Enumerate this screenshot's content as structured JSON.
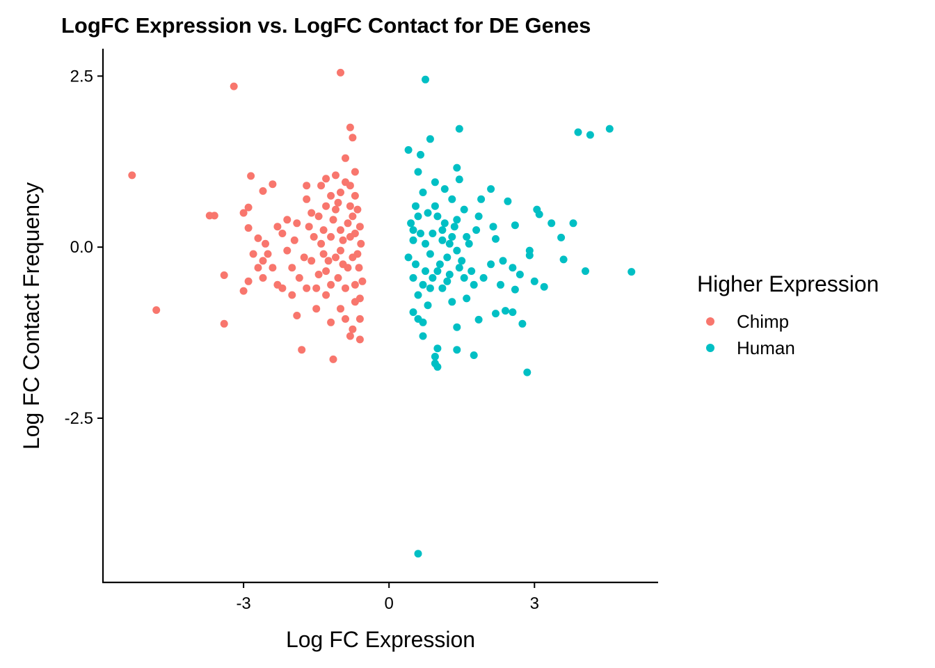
{
  "chart_data": {
    "type": "scatter",
    "title": "LogFC Expression vs. LogFC Contact for DE Genes",
    "xlabel": "Log FC Expression",
    "ylabel": "Log FC Contact Frequency",
    "xlim": [
      -5.9,
      5.55
    ],
    "ylim": [
      -4.9,
      2.9
    ],
    "x_ticks": [
      -3,
      0,
      3
    ],
    "x_tick_labels": [
      "-3",
      "0",
      "3"
    ],
    "y_ticks": [
      -2.5,
      0,
      2.5
    ],
    "y_tick_labels": [
      "-2.5",
      "0.0",
      "2.5"
    ],
    "grid": false,
    "legend": {
      "title": "Higher Expression",
      "position": "right"
    },
    "series": [
      {
        "name": "Chimp",
        "color": "#F8766D",
        "points": [
          [
            -1.0,
            2.55
          ],
          [
            -3.2,
            2.35
          ],
          [
            -5.3,
            1.05
          ],
          [
            -4.8,
            -0.92
          ],
          [
            -3.4,
            -1.12
          ],
          [
            -3.7,
            0.46
          ],
          [
            -3.6,
            0.46
          ],
          [
            -3.4,
            -0.41
          ],
          [
            -3.0,
            0.5
          ],
          [
            -2.9,
            0.58
          ],
          [
            -2.85,
            1.04
          ],
          [
            -2.6,
            0.82
          ],
          [
            -2.4,
            0.92
          ],
          [
            -2.7,
            0.13
          ],
          [
            -2.9,
            0.28
          ],
          [
            -3.0,
            -0.64
          ],
          [
            -2.9,
            -0.5
          ],
          [
            -2.6,
            -0.2
          ],
          [
            -2.3,
            0.3
          ],
          [
            -2.2,
            -0.6
          ],
          [
            -2.0,
            -0.3
          ],
          [
            -1.8,
            -1.5
          ],
          [
            -1.9,
            -1.0
          ],
          [
            -1.7,
            0.7
          ],
          [
            -1.7,
            0.9
          ],
          [
            -1.3,
            1.0
          ],
          [
            -1.2,
            -1.1
          ],
          [
            -1.15,
            -1.64
          ],
          [
            -1.4,
            0.9
          ],
          [
            -1.1,
            1.05
          ],
          [
            -0.9,
            1.3
          ],
          [
            -0.8,
            1.75
          ],
          [
            -0.75,
            1.6
          ],
          [
            -0.7,
            1.1
          ],
          [
            -0.8,
            0.9
          ],
          [
            -0.75,
            -1.2
          ],
          [
            -0.8,
            -1.3
          ],
          [
            -0.6,
            -1.35
          ],
          [
            -0.6,
            -1.05
          ],
          [
            -2.5,
            -0.1
          ],
          [
            -2.3,
            -0.55
          ],
          [
            -2.1,
            -0.05
          ],
          [
            -1.9,
            0.35
          ],
          [
            -1.6,
            -0.2
          ],
          [
            -2.2,
            0.2
          ],
          [
            -2.4,
            -0.3
          ],
          [
            -2.0,
            -0.7
          ],
          [
            -1.7,
            -0.6
          ],
          [
            -1.5,
            -0.9
          ],
          [
            -1.3,
            -0.7
          ],
          [
            -1.0,
            -0.9
          ],
          [
            -0.9,
            -1.05
          ],
          [
            -0.7,
            -0.8
          ],
          [
            -1.6,
            0.5
          ],
          [
            -1.3,
            0.6
          ],
          [
            -1.2,
            0.75
          ],
          [
            -1.0,
            0.8
          ],
          [
            -0.9,
            0.95
          ],
          [
            -0.7,
            0.75
          ],
          [
            -2.6,
            -0.45
          ],
          [
            -2.8,
            -0.1
          ],
          [
            -2.7,
            -0.3
          ],
          [
            -2.55,
            0.05
          ],
          [
            -1.85,
            -0.45
          ],
          [
            -1.55,
            0.15
          ],
          [
            -1.45,
            -0.4
          ],
          [
            -1.35,
            0.25
          ],
          [
            -1.25,
            -0.2
          ],
          [
            -1.15,
            0.4
          ],
          [
            -1.05,
            -0.45
          ],
          [
            -0.95,
            0.1
          ],
          [
            -0.85,
            -0.3
          ],
          [
            -0.75,
            0.45
          ],
          [
            -0.65,
            -0.1
          ],
          [
            -0.6,
            0.3
          ],
          [
            -0.55,
            -0.5
          ],
          [
            -0.9,
            -0.6
          ],
          [
            -1.1,
            0.55
          ],
          [
            -0.8,
            0.6
          ],
          [
            -1.2,
            -0.55
          ],
          [
            -1.0,
            0.25
          ],
          [
            -0.7,
            -0.55
          ],
          [
            -1.4,
            0.05
          ],
          [
            -1.1,
            -0.15
          ],
          [
            -0.8,
            0.15
          ],
          [
            -0.65,
            0.55
          ],
          [
            -0.6,
            -0.75
          ],
          [
            -2.1,
            0.4
          ],
          [
            -1.95,
            0.1
          ],
          [
            -1.75,
            -0.15
          ],
          [
            -1.65,
            0.3
          ],
          [
            -1.5,
            -0.6
          ],
          [
            -1.45,
            0.45
          ],
          [
            -1.3,
            -0.35
          ],
          [
            -1.2,
            0.15
          ],
          [
            -1.05,
            0.65
          ],
          [
            -0.95,
            -0.25
          ],
          [
            -0.85,
            0.35
          ],
          [
            -0.75,
            -0.15
          ],
          [
            -0.7,
            0.2
          ],
          [
            -0.62,
            -0.3
          ],
          [
            -0.58,
            0.05
          ],
          [
            -1.35,
            -0.1
          ],
          [
            -1.0,
            -0.05
          ]
        ]
      },
      {
        "name": "Human",
        "color": "#00BFC4",
        "points": [
          [
            0.75,
            2.45
          ],
          [
            1.45,
            1.73
          ],
          [
            4.55,
            1.73
          ],
          [
            4.15,
            1.64
          ],
          [
            0.85,
            1.58
          ],
          [
            0.4,
            1.42
          ],
          [
            0.65,
            1.35
          ],
          [
            0.6,
            1.1
          ],
          [
            1.4,
            1.16
          ],
          [
            1.45,
            0.99
          ],
          [
            0.6,
            -4.48
          ],
          [
            2.85,
            -1.83
          ],
          [
            1.0,
            -1.75
          ],
          [
            0.95,
            -1.7
          ],
          [
            0.95,
            -1.6
          ],
          [
            1.4,
            -1.5
          ],
          [
            1.75,
            -1.58
          ],
          [
            1.0,
            -1.48
          ],
          [
            0.7,
            -1.3
          ],
          [
            1.4,
            -1.17
          ],
          [
            1.85,
            -1.06
          ],
          [
            2.75,
            -1.12
          ],
          [
            2.2,
            -0.97
          ],
          [
            2.55,
            -0.95
          ],
          [
            2.4,
            -0.93
          ],
          [
            3.9,
            1.68
          ],
          [
            3.05,
            0.55
          ],
          [
            3.1,
            0.48
          ],
          [
            3.35,
            0.35
          ],
          [
            3.55,
            0.14
          ],
          [
            3.8,
            0.35
          ],
          [
            2.45,
            0.67
          ],
          [
            2.6,
            0.32
          ],
          [
            2.9,
            -0.05
          ],
          [
            2.9,
            -0.12
          ],
          [
            3.6,
            -0.18
          ],
          [
            3.2,
            -0.58
          ],
          [
            3.0,
            -0.5
          ],
          [
            4.05,
            -0.35
          ],
          [
            5.0,
            -0.36
          ],
          [
            2.1,
            0.85
          ],
          [
            1.9,
            0.7
          ],
          [
            1.85,
            0.45
          ],
          [
            2.15,
            0.3
          ],
          [
            2.2,
            0.12
          ],
          [
            2.35,
            -0.2
          ],
          [
            2.55,
            -0.3
          ],
          [
            2.7,
            -0.4
          ],
          [
            2.6,
            -0.62
          ],
          [
            2.3,
            -0.55
          ],
          [
            2.1,
            -0.25
          ],
          [
            1.95,
            -0.45
          ],
          [
            1.75,
            -0.55
          ],
          [
            1.6,
            -0.75
          ],
          [
            1.3,
            -0.8
          ],
          [
            0.5,
            -0.95
          ],
          [
            0.6,
            -1.05
          ],
          [
            0.7,
            -1.1
          ],
          [
            0.8,
            -0.85
          ],
          [
            1.1,
            -0.6
          ],
          [
            1.25,
            -0.4
          ],
          [
            1.5,
            -0.2
          ],
          [
            1.65,
            0.05
          ],
          [
            1.8,
            0.25
          ],
          [
            1.55,
            0.55
          ],
          [
            1.3,
            0.7
          ],
          [
            1.15,
            0.85
          ],
          [
            0.95,
            0.95
          ],
          [
            0.7,
            0.8
          ],
          [
            0.55,
            0.6
          ],
          [
            0.45,
            0.35
          ],
          [
            0.5,
            0.1
          ],
          [
            0.4,
            -0.15
          ],
          [
            0.5,
            -0.45
          ],
          [
            0.6,
            -0.7
          ],
          [
            0.75,
            -0.35
          ],
          [
            0.85,
            -0.1
          ],
          [
            0.9,
            0.2
          ],
          [
            1.0,
            0.45
          ],
          [
            1.1,
            0.1
          ],
          [
            1.2,
            -0.15
          ],
          [
            1.35,
            0.3
          ],
          [
            1.45,
            -0.3
          ],
          [
            1.6,
            0.15
          ],
          [
            1.7,
            -0.35
          ],
          [
            0.65,
            0.2
          ],
          [
            0.7,
            -0.55
          ],
          [
            0.8,
            0.5
          ],
          [
            0.9,
            -0.45
          ],
          [
            1.05,
            -0.25
          ],
          [
            1.15,
            0.35
          ],
          [
            1.25,
            0.05
          ],
          [
            1.4,
            -0.05
          ],
          [
            1.55,
            -0.45
          ],
          [
            0.55,
            -0.25
          ],
          [
            0.6,
            0.45
          ],
          [
            0.75,
            0.05
          ],
          [
            0.85,
            -0.6
          ],
          [
            0.95,
            0.6
          ],
          [
            1.0,
            -0.35
          ],
          [
            1.1,
            0.25
          ],
          [
            1.2,
            -0.5
          ],
          [
            1.3,
            0.15
          ],
          [
            1.4,
            0.4
          ],
          [
            0.5,
            0.25
          ]
        ]
      }
    ]
  }
}
